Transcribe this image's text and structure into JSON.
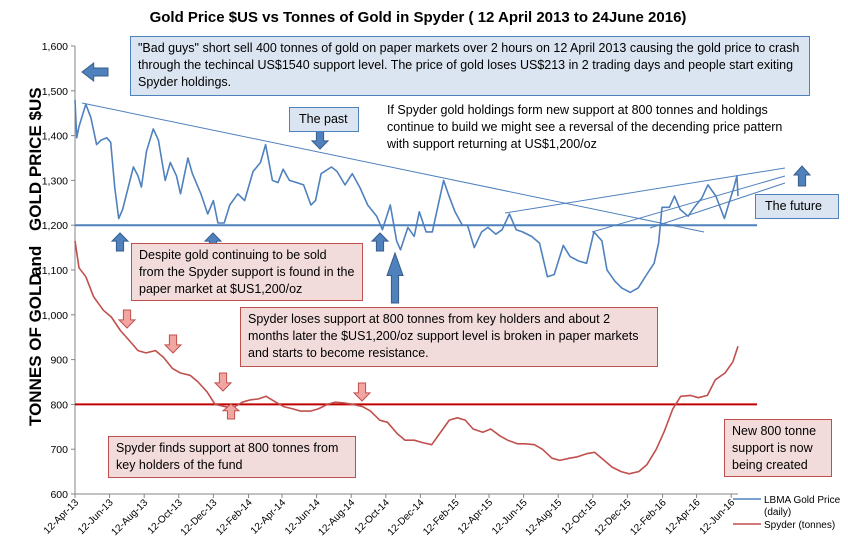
{
  "chart_data": {
    "type": "line",
    "title": "Gold Price $US vs Tonnes of Gold in Spyder ( 12 April 2013 to 24June 2016)",
    "ylabel_left": "TONNES OF GOLD",
    "ylabel_and": "and",
    "ylabel_right": "GOLD PRICE $US",
    "ylim": [
      600,
      1600
    ],
    "yticks": [
      "600",
      "700",
      "800",
      "900",
      "1,000",
      "1,100",
      "1,200",
      "1,300",
      "1,400",
      "1,500",
      "1,600"
    ],
    "ytick_values": [
      600,
      700,
      800,
      900,
      1000,
      1100,
      1200,
      1300,
      1400,
      1500,
      1600
    ],
    "xlim": [
      "2013-04-12",
      "2016-06-24"
    ],
    "xticks": [
      "12-Apr-13",
      "12-Jun-13",
      "12-Aug-13",
      "12-Oct-13",
      "12-Dec-13",
      "12-Feb-14",
      "12-Apr-14",
      "12-Jun-14",
      "12-Aug-14",
      "12-Oct-14",
      "12-Dec-14",
      "12-Feb-15",
      "12-Apr-15",
      "12-Jun-15",
      "12-Aug-15",
      "12-Oct-15",
      "12-Dec-15",
      "12-Feb-16",
      "12-Apr-16",
      "12-Jun-16"
    ],
    "xtick_dates": [
      "2013-04-12",
      "2013-06-12",
      "2013-08-12",
      "2013-10-12",
      "2013-12-12",
      "2014-02-12",
      "2014-04-12",
      "2014-06-12",
      "2014-08-12",
      "2014-10-12",
      "2014-12-12",
      "2015-02-12",
      "2015-04-12",
      "2015-06-12",
      "2015-08-12",
      "2015-10-12",
      "2015-12-12",
      "2016-02-12",
      "2016-04-12",
      "2016-06-12"
    ],
    "grid": false,
    "legend_position": "bottom-right",
    "series": [
      {
        "name": "LBMA Gold Price (daily)",
        "color": "#4f81bd",
        "points": [
          [
            "2013-04-12",
            1480
          ],
          [
            "2013-04-15",
            1395
          ],
          [
            "2013-04-19",
            1420
          ],
          [
            "2013-05-01",
            1470
          ],
          [
            "2013-05-10",
            1440
          ],
          [
            "2013-05-20",
            1380
          ],
          [
            "2013-05-28",
            1390
          ],
          [
            "2013-06-07",
            1395
          ],
          [
            "2013-06-14",
            1385
          ],
          [
            "2013-06-21",
            1285
          ],
          [
            "2013-06-28",
            1215
          ],
          [
            "2013-07-05",
            1235
          ],
          [
            "2013-07-15",
            1285
          ],
          [
            "2013-07-24",
            1330
          ],
          [
            "2013-08-01",
            1310
          ],
          [
            "2013-08-07",
            1285
          ],
          [
            "2013-08-16",
            1365
          ],
          [
            "2013-08-28",
            1415
          ],
          [
            "2013-09-06",
            1390
          ],
          [
            "2013-09-18",
            1300
          ],
          [
            "2013-09-27",
            1340
          ],
          [
            "2013-10-08",
            1310
          ],
          [
            "2013-10-15",
            1270
          ],
          [
            "2013-10-28",
            1350
          ],
          [
            "2013-11-05",
            1315
          ],
          [
            "2013-11-20",
            1270
          ],
          [
            "2013-12-02",
            1225
          ],
          [
            "2013-12-12",
            1255
          ],
          [
            "2013-12-20",
            1205
          ],
          [
            "2013-12-31",
            1205
          ],
          [
            "2014-01-10",
            1245
          ],
          [
            "2014-01-24",
            1270
          ],
          [
            "2014-02-05",
            1255
          ],
          [
            "2014-02-20",
            1320
          ],
          [
            "2014-03-05",
            1340
          ],
          [
            "2014-03-14",
            1380
          ],
          [
            "2014-03-26",
            1300
          ],
          [
            "2014-04-05",
            1295
          ],
          [
            "2014-04-14",
            1325
          ],
          [
            "2014-04-25",
            1300
          ],
          [
            "2014-05-08",
            1295
          ],
          [
            "2014-05-20",
            1290
          ],
          [
            "2014-06-02",
            1245
          ],
          [
            "2014-06-10",
            1255
          ],
          [
            "2014-06-20",
            1315
          ],
          [
            "2014-07-08",
            1330
          ],
          [
            "2014-07-18",
            1320
          ],
          [
            "2014-08-01",
            1290
          ],
          [
            "2014-08-14",
            1315
          ],
          [
            "2014-08-27",
            1285
          ],
          [
            "2014-09-10",
            1245
          ],
          [
            "2014-09-26",
            1220
          ],
          [
            "2014-10-06",
            1190
          ],
          [
            "2014-10-20",
            1245
          ],
          [
            "2014-10-31",
            1165
          ],
          [
            "2014-11-07",
            1145
          ],
          [
            "2014-11-20",
            1195
          ],
          [
            "2014-12-01",
            1175
          ],
          [
            "2014-12-10",
            1230
          ],
          [
            "2014-12-22",
            1185
          ],
          [
            "2015-01-02",
            1185
          ],
          [
            "2015-01-22",
            1300
          ],
          [
            "2015-01-30",
            1270
          ],
          [
            "2015-02-11",
            1230
          ],
          [
            "2015-02-24",
            1200
          ],
          [
            "2015-03-05",
            1200
          ],
          [
            "2015-03-17",
            1150
          ],
          [
            "2015-03-30",
            1185
          ],
          [
            "2015-04-10",
            1195
          ],
          [
            "2015-04-24",
            1180
          ],
          [
            "2015-05-05",
            1190
          ],
          [
            "2015-05-18",
            1225
          ],
          [
            "2015-05-30",
            1190
          ],
          [
            "2015-06-10",
            1185
          ],
          [
            "2015-06-26",
            1175
          ],
          [
            "2015-07-10",
            1160
          ],
          [
            "2015-07-24",
            1085
          ],
          [
            "2015-08-05",
            1090
          ],
          [
            "2015-08-21",
            1155
          ],
          [
            "2015-09-02",
            1130
          ],
          [
            "2015-09-17",
            1120
          ],
          [
            "2015-10-01",
            1115
          ],
          [
            "2015-10-14",
            1185
          ],
          [
            "2015-10-28",
            1165
          ],
          [
            "2015-11-06",
            1100
          ],
          [
            "2015-11-20",
            1075
          ],
          [
            "2015-12-02",
            1060
          ],
          [
            "2015-12-17",
            1050
          ],
          [
            "2015-12-31",
            1060
          ],
          [
            "2016-01-15",
            1090
          ],
          [
            "2016-01-28",
            1115
          ],
          [
            "2016-02-05",
            1160
          ],
          [
            "2016-02-11",
            1240
          ],
          [
            "2016-02-24",
            1240
          ],
          [
            "2016-03-04",
            1265
          ],
          [
            "2016-03-14",
            1235
          ],
          [
            "2016-03-28",
            1220
          ],
          [
            "2016-04-08",
            1240
          ],
          [
            "2016-04-21",
            1260
          ],
          [
            "2016-05-02",
            1290
          ],
          [
            "2016-05-16",
            1265
          ],
          [
            "2016-05-31",
            1215
          ],
          [
            "2016-06-07",
            1245
          ],
          [
            "2016-06-17",
            1285
          ],
          [
            "2016-06-22",
            1310
          ],
          [
            "2016-06-24",
            1265
          ]
        ]
      },
      {
        "name": "Spyder (tonnes)",
        "color": "#c0504d",
        "points": [
          [
            "2013-04-12",
            1165
          ],
          [
            "2013-04-19",
            1105
          ],
          [
            "2013-05-01",
            1085
          ],
          [
            "2013-05-15",
            1040
          ],
          [
            "2013-06-01",
            1010
          ],
          [
            "2013-06-15",
            995
          ],
          [
            "2013-07-01",
            965
          ],
          [
            "2013-07-15",
            945
          ],
          [
            "2013-08-01",
            920
          ],
          [
            "2013-08-15",
            915
          ],
          [
            "2013-09-01",
            920
          ],
          [
            "2013-09-15",
            905
          ],
          [
            "2013-10-01",
            880
          ],
          [
            "2013-10-15",
            870
          ],
          [
            "2013-11-01",
            865
          ],
          [
            "2013-11-15",
            850
          ],
          [
            "2013-12-01",
            828
          ],
          [
            "2013-12-15",
            800
          ],
          [
            "2014-01-01",
            795
          ],
          [
            "2014-01-15",
            792
          ],
          [
            "2014-02-01",
            805
          ],
          [
            "2014-02-15",
            810
          ],
          [
            "2014-03-01",
            812
          ],
          [
            "2014-03-15",
            818
          ],
          [
            "2014-04-01",
            805
          ],
          [
            "2014-04-15",
            795
          ],
          [
            "2014-05-01",
            790
          ],
          [
            "2014-05-15",
            785
          ],
          [
            "2014-06-01",
            785
          ],
          [
            "2014-06-15",
            790
          ],
          [
            "2014-07-01",
            800
          ],
          [
            "2014-07-15",
            805
          ],
          [
            "2014-08-01",
            803
          ],
          [
            "2014-08-15",
            800
          ],
          [
            "2014-09-01",
            795
          ],
          [
            "2014-09-15",
            785
          ],
          [
            "2014-10-01",
            765
          ],
          [
            "2014-10-15",
            760
          ],
          [
            "2014-11-01",
            735
          ],
          [
            "2014-11-15",
            720
          ],
          [
            "2014-12-01",
            720
          ],
          [
            "2014-12-15",
            715
          ],
          [
            "2015-01-01",
            710
          ],
          [
            "2015-01-15",
            735
          ],
          [
            "2015-02-01",
            765
          ],
          [
            "2015-02-15",
            770
          ],
          [
            "2015-03-01",
            765
          ],
          [
            "2015-03-15",
            745
          ],
          [
            "2015-04-01",
            738
          ],
          [
            "2015-04-15",
            745
          ],
          [
            "2015-05-01",
            730
          ],
          [
            "2015-05-15",
            720
          ],
          [
            "2015-06-01",
            712
          ],
          [
            "2015-06-15",
            712
          ],
          [
            "2015-07-01",
            710
          ],
          [
            "2015-07-15",
            700
          ],
          [
            "2015-08-01",
            680
          ],
          [
            "2015-08-15",
            675
          ],
          [
            "2015-09-01",
            680
          ],
          [
            "2015-09-15",
            683
          ],
          [
            "2015-10-01",
            690
          ],
          [
            "2015-10-15",
            693
          ],
          [
            "2015-11-01",
            675
          ],
          [
            "2015-11-15",
            660
          ],
          [
            "2015-12-01",
            650
          ],
          [
            "2015-12-15",
            645
          ],
          [
            "2016-01-01",
            650
          ],
          [
            "2016-01-15",
            665
          ],
          [
            "2016-02-01",
            700
          ],
          [
            "2016-02-15",
            740
          ],
          [
            "2016-03-01",
            790
          ],
          [
            "2016-03-15",
            818
          ],
          [
            "2016-04-01",
            820
          ],
          [
            "2016-04-15",
            815
          ],
          [
            "2016-05-01",
            820
          ],
          [
            "2016-05-15",
            855
          ],
          [
            "2016-06-01",
            870
          ],
          [
            "2016-06-15",
            895
          ],
          [
            "2016-06-24",
            930
          ]
        ]
      }
    ]
  },
  "legend": {
    "gold_line1": "LBMA Gold Price",
    "gold_line2": "(daily)",
    "spyder": "Spyder  (tonnes)"
  },
  "annotations": {
    "bad_guys": "\"Bad guys\" short sell 400 tonnes of gold on paper markets over 2 hours on 12 April 2013 causing the gold price to crash through the techincal US$1540 support level. The price of gold loses US$213 in 2 trading days and people start exiting Spyder holdings.",
    "the_past": "The past",
    "if_spyder": "If Spyder gold holdings form new support at 800 tonnes and holdings continue to build we might see a reversal of the decending price pattern with support returning at US$1,200/oz",
    "the_future": "The future",
    "despite": "Despite gold continuing to be sold from the Spyder support is found in the paper market at $US1,200/oz",
    "spyder_loses": "Spyder loses support at 800 tonnes from key holders and about 2 months later the $US1,200/oz support level is broken in paper markets and starts to become resistance.",
    "spyder_finds": "Spyder finds support at 800 tonnes from key holders of the fund",
    "new_800": "New 800 tonne support is now being created"
  },
  "reference_lines": {
    "gold_support": 1200,
    "spyder_support": 800
  }
}
